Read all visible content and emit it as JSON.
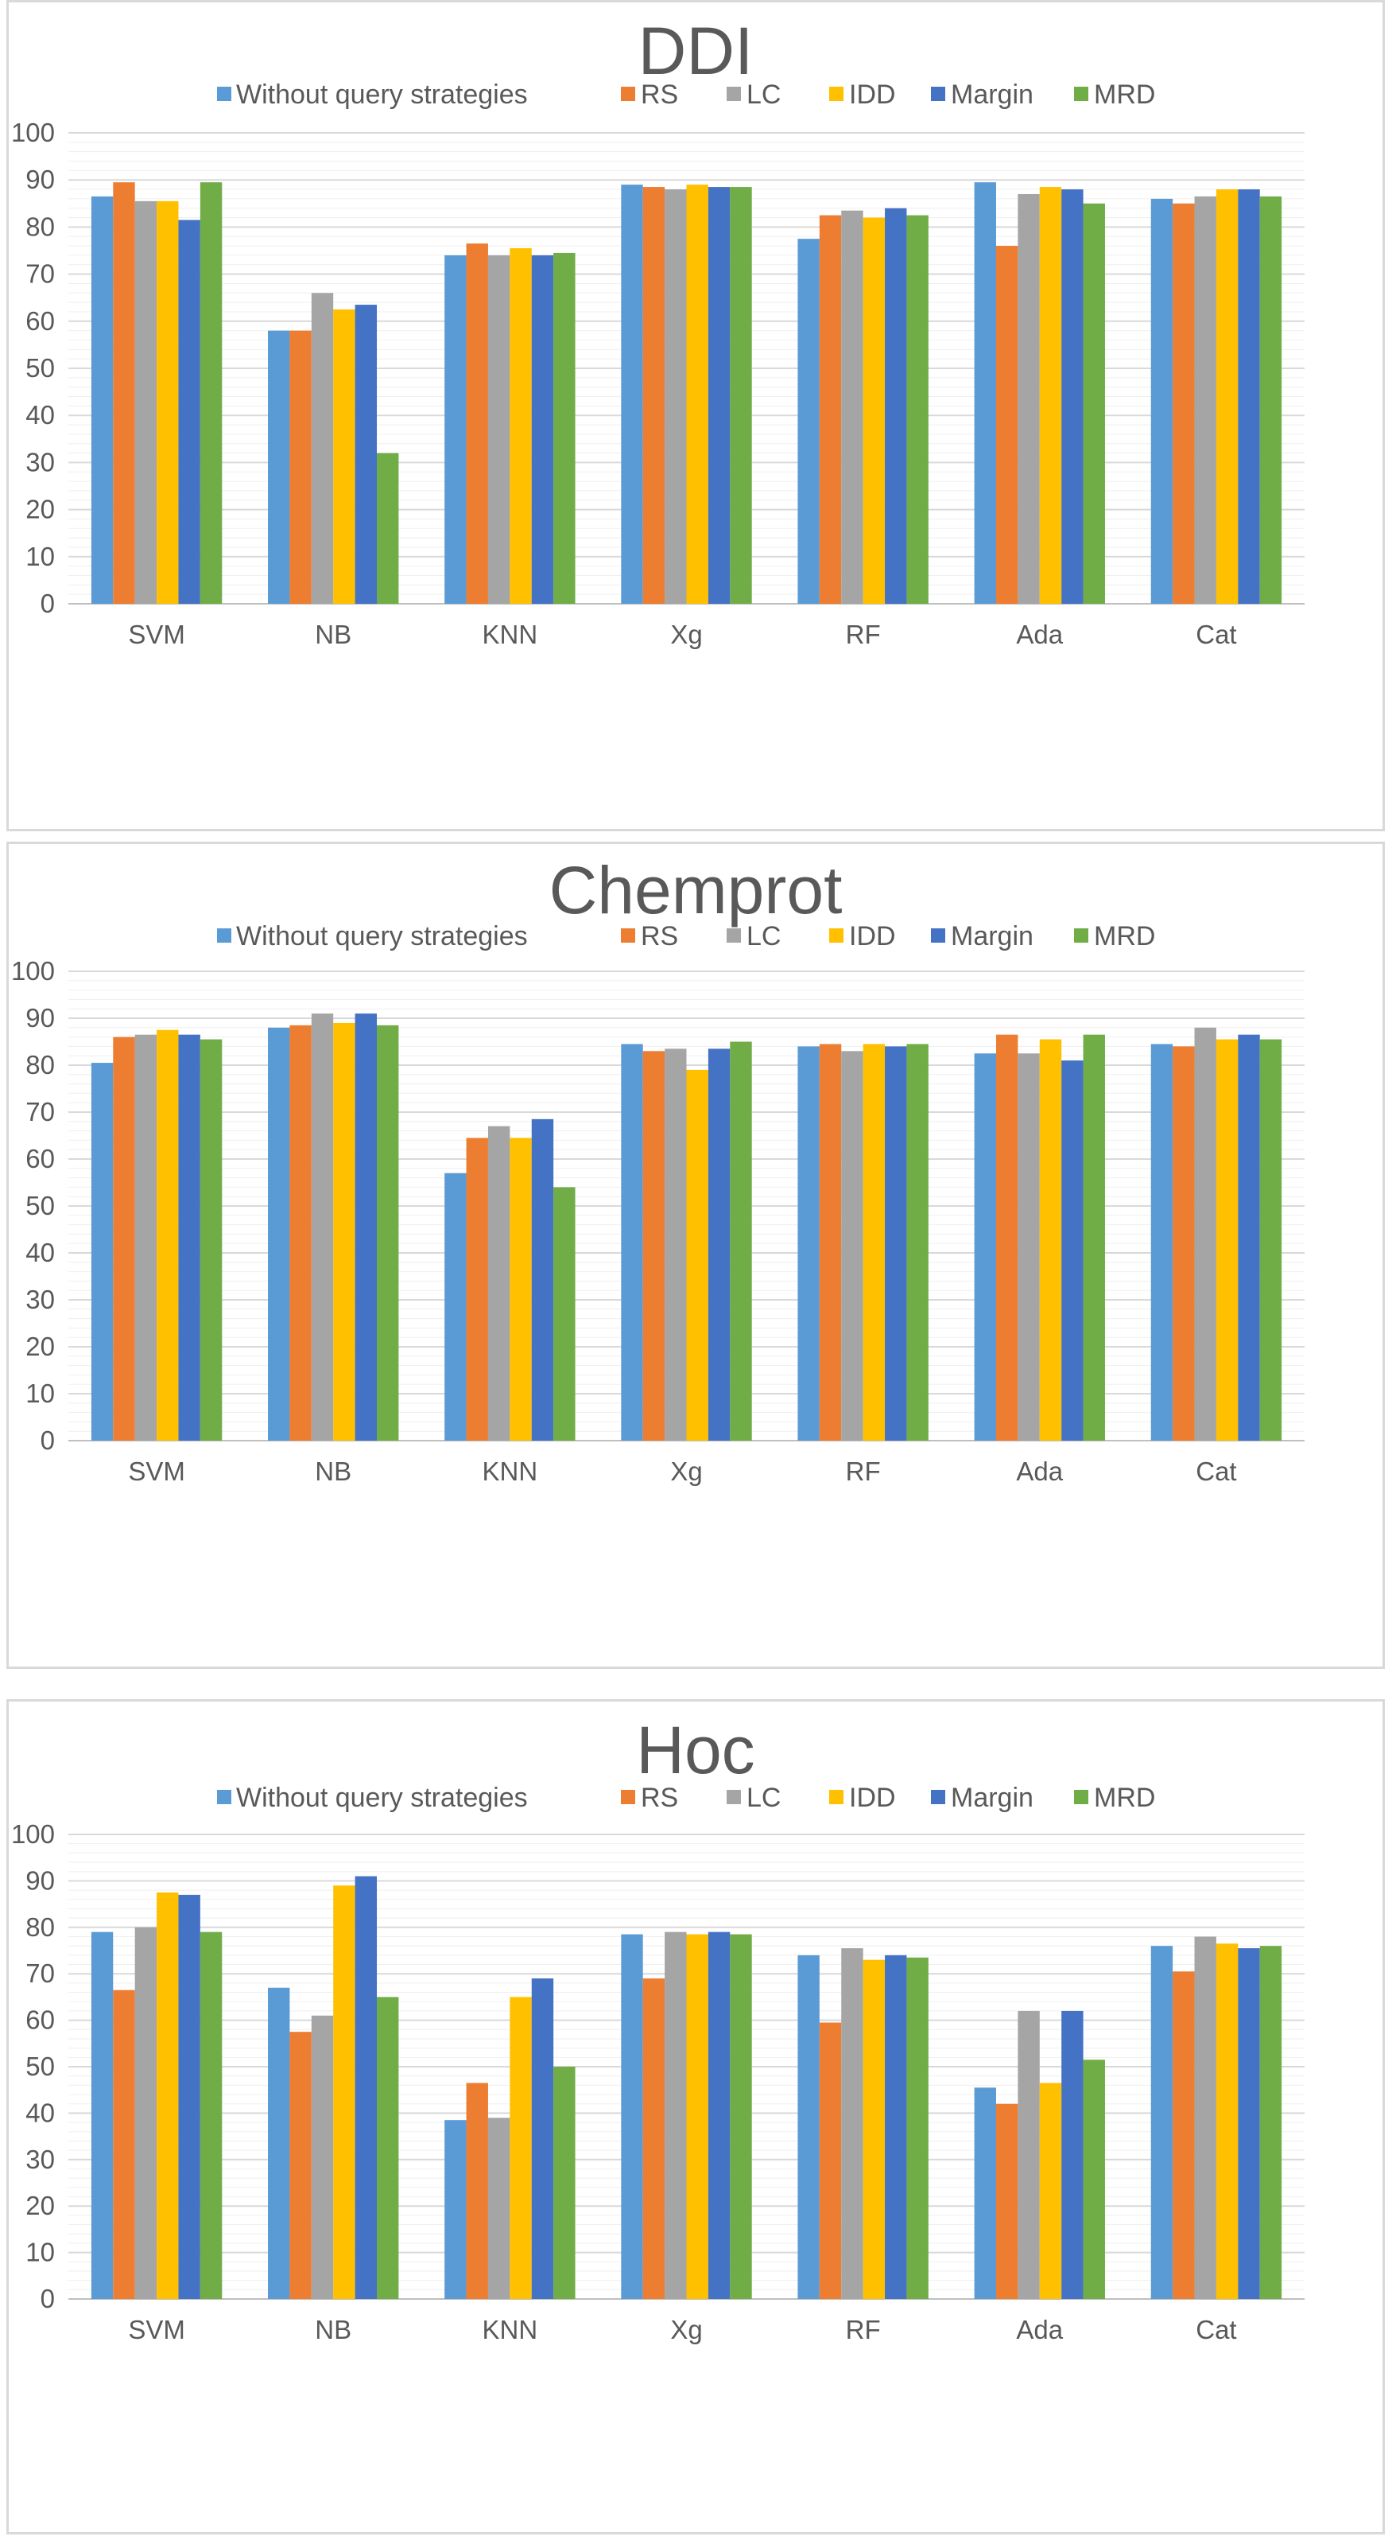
{
  "colors": {
    "Without query strategies": "#5b9bd5",
    "RS": "#ed7d31",
    "LC": "#a5a5a5",
    "IDD": "#ffc000",
    "Margin": "#4472c4",
    "MRD": "#70ad47",
    "grid": "#d9d9d9",
    "axis": "#bfbfbf",
    "text": "#595959"
  },
  "chart_data": [
    {
      "type": "bar",
      "title": "DDI",
      "xlabel": "",
      "ylabel": "",
      "ylim": [
        0,
        100
      ],
      "yticks": [
        "0",
        "10",
        "20",
        "30",
        "40",
        "50",
        "60",
        "70",
        "80",
        "90",
        "100"
      ],
      "legend_position": "top",
      "categories": [
        "SVM",
        "NB",
        "KNN",
        "Xg",
        "RF",
        "Ada",
        "Cat"
      ],
      "series": [
        {
          "name": "Without query strategies",
          "values": [
            86.5,
            58,
            74,
            89,
            77.5,
            89.5,
            86
          ]
        },
        {
          "name": "RS",
          "values": [
            89.5,
            58,
            76.5,
            88.5,
            82.5,
            76,
            85
          ]
        },
        {
          "name": "LC",
          "values": [
            85.5,
            66,
            74,
            88,
            83.5,
            87,
            86.5
          ]
        },
        {
          "name": "IDD",
          "values": [
            85.5,
            62.5,
            75.5,
            89,
            82,
            88.5,
            88
          ]
        },
        {
          "name": "Margin",
          "values": [
            81.5,
            63.5,
            74,
            88.5,
            84,
            88,
            88
          ]
        },
        {
          "name": "MRD",
          "values": [
            89.5,
            32,
            74.5,
            88.5,
            82.5,
            85,
            86.5
          ]
        }
      ]
    },
    {
      "type": "bar",
      "title": "Chemprot",
      "xlabel": "",
      "ylabel": "",
      "ylim": [
        0,
        100
      ],
      "yticks": [
        "0",
        "10",
        "20",
        "30",
        "40",
        "50",
        "60",
        "70",
        "80",
        "90",
        "100"
      ],
      "legend_position": "top",
      "categories": [
        "SVM",
        "NB",
        "KNN",
        "Xg",
        "RF",
        "Ada",
        "Cat"
      ],
      "series": [
        {
          "name": "Without query strategies",
          "values": [
            80.5,
            88,
            57,
            84.5,
            84,
            82.5,
            84.5
          ]
        },
        {
          "name": "RS",
          "values": [
            86,
            88.5,
            64.5,
            83,
            84.5,
            86.5,
            84
          ]
        },
        {
          "name": "LC",
          "values": [
            86.5,
            91,
            67,
            83.5,
            83,
            82.5,
            88
          ]
        },
        {
          "name": "IDD",
          "values": [
            87.5,
            89,
            64.5,
            79,
            84.5,
            85.5,
            85.5
          ]
        },
        {
          "name": "Margin",
          "values": [
            86.5,
            91,
            68.5,
            83.5,
            84,
            81,
            86.5
          ]
        },
        {
          "name": "MRD",
          "values": [
            85.5,
            88.5,
            54,
            85,
            84.5,
            86.5,
            85.5
          ]
        }
      ]
    },
    {
      "type": "bar",
      "title": "Hoc",
      "xlabel": "",
      "ylabel": "",
      "ylim": [
        0,
        100
      ],
      "yticks": [
        "0",
        "10",
        "20",
        "30",
        "40",
        "50",
        "60",
        "70",
        "80",
        "90",
        "100"
      ],
      "legend_position": "top",
      "categories": [
        "SVM",
        "NB",
        "KNN",
        "Xg",
        "RF",
        "Ada",
        "Cat"
      ],
      "series": [
        {
          "name": "Without query strategies",
          "values": [
            79,
            67,
            38.5,
            78.5,
            74,
            45.5,
            76
          ]
        },
        {
          "name": "RS",
          "values": [
            66.5,
            57.5,
            46.5,
            69,
            59.5,
            42,
            70.5
          ]
        },
        {
          "name": "LC",
          "values": [
            80,
            61,
            39,
            79,
            75.5,
            62,
            78
          ]
        },
        {
          "name": "IDD",
          "values": [
            87.5,
            89,
            65,
            78.5,
            73,
            46.5,
            76.5
          ]
        },
        {
          "name": "Margin",
          "values": [
            87,
            91,
            69,
            79,
            74,
            62,
            75.5
          ]
        },
        {
          "name": "MRD",
          "values": [
            79,
            65,
            50,
            78.5,
            73.5,
            51.5,
            76
          ]
        }
      ]
    }
  ]
}
